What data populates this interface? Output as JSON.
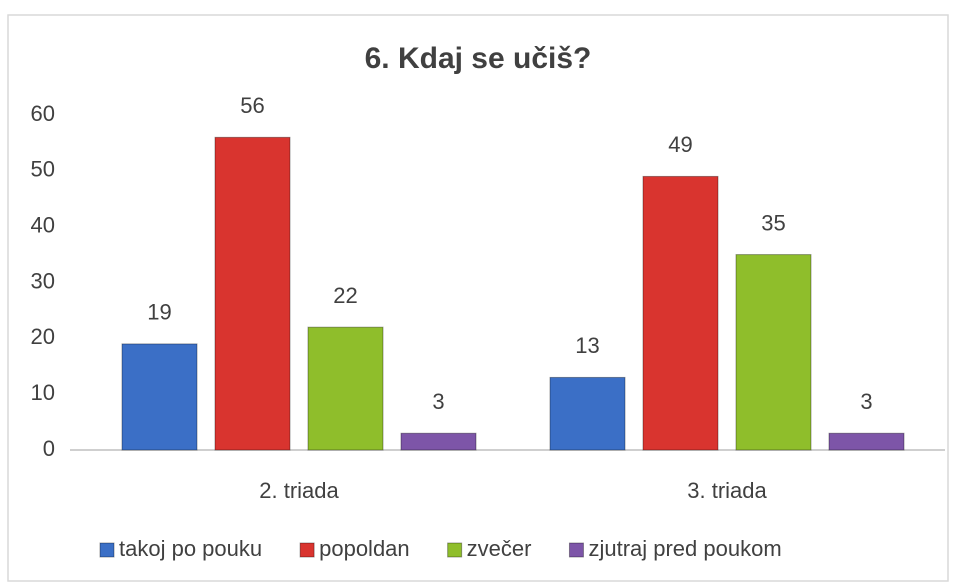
{
  "chart_data": {
    "type": "bar",
    "title": "6. Kdaj se učiš?",
    "categories": [
      "2. triada",
      "3. triada"
    ],
    "series": [
      {
        "name": "takoj po pouku",
        "color": "#3b6fc6",
        "values": [
          19,
          13
        ]
      },
      {
        "name": "popoldan",
        "color": "#d9342f",
        "values": [
          56,
          49
        ]
      },
      {
        "name": "zvečer",
        "color": "#8fbe2b",
        "values": [
          22,
          35
        ]
      },
      {
        "name": "zjutraj pred poukom",
        "color": "#7d55a8",
        "values": [
          3,
          3
        ]
      }
    ],
    "ylim": [
      0,
      60
    ],
    "yticks": [
      0,
      10,
      20,
      30,
      40,
      50,
      60
    ],
    "grid": false,
    "legend": "bottom"
  }
}
